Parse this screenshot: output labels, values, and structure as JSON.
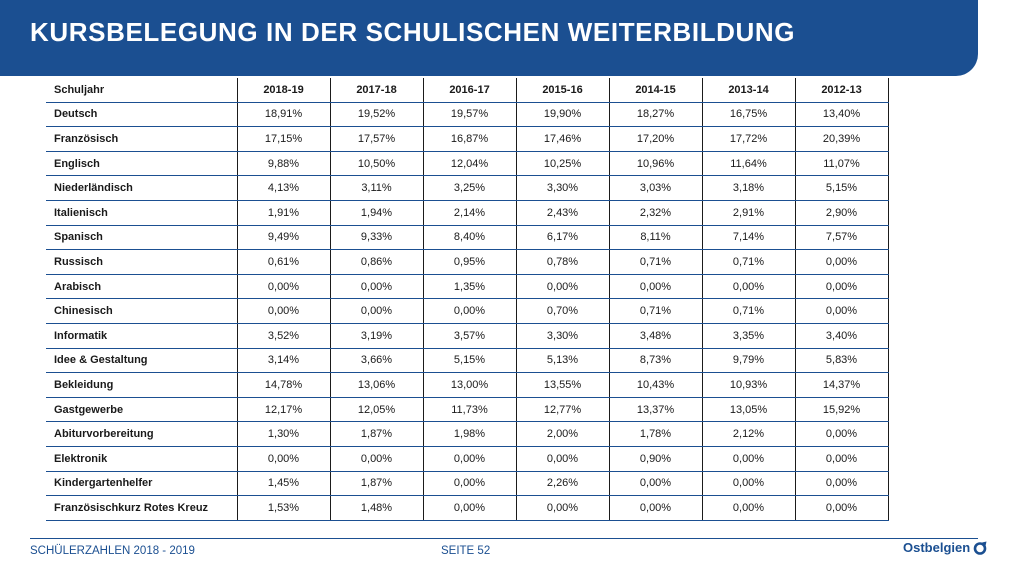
{
  "title": "KURSBELEGUNG IN DER SCHULISCHEN WEITERBILDUNG",
  "table": {
    "headers": [
      "Schuljahr",
      "2018-19",
      "2017-18",
      "2016-17",
      "2015-16",
      "2014-15",
      "2013-14",
      "2012-13"
    ],
    "rows": [
      [
        "Deutsch",
        "18,91%",
        "19,52%",
        "19,57%",
        "19,90%",
        "18,27%",
        "16,75%",
        "13,40%"
      ],
      [
        "Französisch",
        "17,15%",
        "17,57%",
        "16,87%",
        "17,46%",
        "17,20%",
        "17,72%",
        "20,39%"
      ],
      [
        "Englisch",
        "9,88%",
        "10,50%",
        "12,04%",
        "10,25%",
        "10,96%",
        "11,64%",
        "11,07%"
      ],
      [
        "Niederländisch",
        "4,13%",
        "3,11%",
        "3,25%",
        "3,30%",
        "3,03%",
        "3,18%",
        "5,15%"
      ],
      [
        "Italienisch",
        "1,91%",
        "1,94%",
        "2,14%",
        "2,43%",
        "2,32%",
        "2,91%",
        "2,90%"
      ],
      [
        "Spanisch",
        "9,49%",
        "9,33%",
        "8,40%",
        "6,17%",
        "8,11%",
        "7,14%",
        "7,57%"
      ],
      [
        "Russisch",
        "0,61%",
        "0,86%",
        "0,95%",
        "0,78%",
        "0,71%",
        "0,71%",
        "0,00%"
      ],
      [
        "Arabisch",
        "0,00%",
        "0,00%",
        "1,35%",
        "0,00%",
        "0,00%",
        "0,00%",
        "0,00%"
      ],
      [
        "Chinesisch",
        "0,00%",
        "0,00%",
        "0,00%",
        "0,70%",
        "0,71%",
        "0,71%",
        "0,00%"
      ],
      [
        "Informatik",
        "3,52%",
        "3,19%",
        "3,57%",
        "3,30%",
        "3,48%",
        "3,35%",
        "3,40%"
      ],
      [
        "Idee & Gestaltung",
        "3,14%",
        "3,66%",
        "5,15%",
        "5,13%",
        "8,73%",
        "9,79%",
        "5,83%"
      ],
      [
        "Bekleidung",
        "14,78%",
        "13,06%",
        "13,00%",
        "13,55%",
        "10,43%",
        "10,93%",
        "14,37%"
      ],
      [
        "Gastgewerbe",
        "12,17%",
        "12,05%",
        "11,73%",
        "12,77%",
        "13,37%",
        "13,05%",
        "15,92%"
      ],
      [
        "Abiturvorbereitung",
        "1,30%",
        "1,87%",
        "1,98%",
        "2,00%",
        "1,78%",
        "2,12%",
        "0,00%"
      ],
      [
        "Elektronik",
        "0,00%",
        "0,00%",
        "0,00%",
        "0,00%",
        "0,90%",
        "0,00%",
        "0,00%"
      ],
      [
        "Kindergartenhelfer",
        "1,45%",
        "1,87%",
        "0,00%",
        "2,26%",
        "0,00%",
        "0,00%",
        "0,00%"
      ],
      [
        "Französischkurz Rotes Kreuz",
        "1,53%",
        "1,48%",
        "0,00%",
        "0,00%",
        "0,00%",
        "0,00%",
        "0,00%"
      ]
    ]
  },
  "footer": {
    "left": "SCHÜLERZAHLEN 2018 - 2019",
    "page": "SEITE 52",
    "logo": "Ostbelgien",
    "logo_icon": "ostbelgien-logo-icon"
  },
  "colors": {
    "brand": "#1b4f91",
    "text": "#1a1a1a"
  }
}
